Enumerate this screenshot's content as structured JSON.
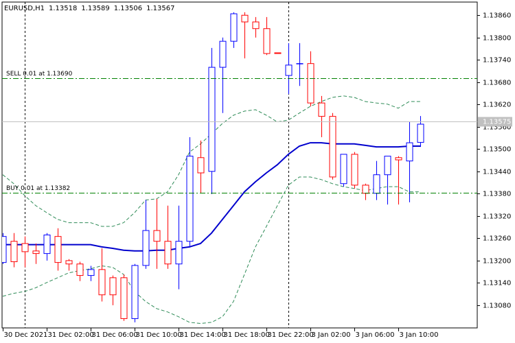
{
  "chart_data": {
    "type": "candlestick",
    "title": "EURUSD,H1",
    "categories": [
      "30 Dec 2021",
      null,
      null,
      null,
      "31 Dec 02:00",
      null,
      null,
      null,
      "31 Dec 06:00",
      null,
      null,
      null,
      "31 Dec 10:00",
      null,
      null,
      null,
      "31 Dec 14:00",
      null,
      null,
      null,
      "31 Dec 18:00",
      null,
      null,
      null,
      "31 Dec 22:00",
      null,
      null,
      null,
      "3 Jan 02:00",
      null,
      null,
      null,
      "3 Jan 06:00",
      null,
      null,
      null,
      "3 Jan 10:00",
      null,
      null
    ],
    "open": [
      1.13195,
      1.13252,
      1.13246,
      1.13226,
      1.13219,
      1.13265,
      1.132,
      1.13191,
      1.1316,
      1.13176,
      1.13154,
      1.13154,
      1.13044,
      1.13187,
      1.13281,
      1.13252,
      1.13191,
      1.13252,
      1.13477,
      1.1344,
      1.1372,
      1.1379,
      1.1386,
      1.13842,
      1.13824,
      1.13759,
      1.13698,
      1.1373,
      1.1373,
      1.13624,
      1.13588,
      1.13407,
      1.13486,
      1.13403,
      1.13381,
      1.13431,
      1.13477,
      1.13468,
      1.13518
    ],
    "high": [
      1.13274,
      1.13274,
      1.13265,
      1.13246,
      1.13274,
      1.13287,
      1.13204,
      1.13197,
      1.13186,
      1.13233,
      1.1316,
      1.13163,
      1.13191,
      1.13363,
      1.13366,
      1.13348,
      1.13348,
      1.13532,
      1.13523,
      1.13772,
      1.138,
      1.13868,
      1.13868,
      1.13855,
      1.13855,
      1.13759,
      1.13785,
      1.13785,
      1.13763,
      1.13643,
      1.13597,
      1.13486,
      1.13492,
      1.13407,
      1.13468,
      1.13481,
      1.13481,
      1.13573,
      1.13589
    ],
    "low": [
      1.13191,
      1.13182,
      1.13182,
      1.13191,
      1.132,
      1.13173,
      1.13173,
      1.13145,
      1.13145,
      1.1309,
      1.1308,
      1.13038,
      1.13034,
      1.13178,
      1.13178,
      1.13178,
      1.13123,
      1.13237,
      1.13381,
      1.13379,
      1.13597,
      1.13772,
      1.13744,
      1.138,
      1.13753,
      1.13757,
      1.13648,
      1.1367,
      1.13615,
      1.13532,
      1.13418,
      1.13399,
      1.13394,
      1.13363,
      1.13363,
      1.13351,
      1.13351,
      1.13357,
      1.13506
    ],
    "close": [
      1.13265,
      1.13197,
      1.13224,
      1.13219,
      1.13269,
      1.13195,
      1.13191,
      1.1316,
      1.13176,
      1.13108,
      1.13108,
      1.13044,
      1.13187,
      1.13281,
      1.13252,
      1.13191,
      1.13252,
      1.13481,
      1.13436,
      1.1372,
      1.1379,
      1.13864,
      1.13842,
      1.13824,
      1.13757,
      1.13757,
      1.13726,
      1.1373,
      1.13624,
      1.13588,
      1.13425,
      1.13486,
      1.13403,
      1.13381,
      1.13431,
      1.13481,
      1.13471,
      1.13517,
      1.13567
    ],
    "up_color": "#0000ff",
    "down_color": "#ff0000",
    "lines": [
      {
        "color": "#0000cd",
        "dashed": false,
        "values": [
          1.13243,
          1.13243,
          1.13243,
          1.13243,
          1.13243,
          1.13243,
          1.13243,
          1.13243,
          1.13243,
          1.13237,
          1.13233,
          1.13228,
          1.13226,
          1.13226,
          1.13228,
          1.13228,
          1.13233,
          1.13237,
          1.13246,
          1.13274,
          1.13311,
          1.13348,
          1.13385,
          1.13412,
          1.13436,
          1.13458,
          1.13486,
          1.13508,
          1.13517,
          1.13517,
          1.13514,
          1.13514,
          1.13514,
          1.1351,
          1.13506,
          1.13506,
          1.13506,
          1.13508,
          1.13508
        ]
      },
      {
        "color": "#2e8b57",
        "dashed": true,
        "values": [
          1.13431,
          1.13407,
          1.13375,
          1.13348,
          1.13329,
          1.13311,
          1.13302,
          1.13302,
          1.13302,
          1.13292,
          1.13292,
          1.13302,
          1.13329,
          1.13363,
          1.13366,
          1.13385,
          1.13431,
          1.13492,
          1.13514,
          1.13541,
          1.13569,
          1.13591,
          1.13602,
          1.13606,
          1.13591,
          1.13573,
          1.13578,
          1.13597,
          1.13615,
          1.13628,
          1.13639,
          1.13643,
          1.13639,
          1.13628,
          1.13624,
          1.13621,
          1.1361,
          1.13628,
          1.13628
        ]
      },
      {
        "color": "#2e8b57",
        "dashed": true,
        "values": [
          1.13104,
          1.13112,
          1.13117,
          1.13127,
          1.13141,
          1.13154,
          1.13167,
          1.13173,
          1.13178,
          1.13186,
          1.13182,
          1.13163,
          1.13117,
          1.1309,
          1.13071,
          1.13062,
          1.13049,
          1.13034,
          1.13031,
          1.13034,
          1.13049,
          1.1309,
          1.13163,
          1.13237,
          1.13292,
          1.13348,
          1.13403,
          1.13425,
          1.13425,
          1.13418,
          1.13407,
          1.13399,
          1.13394,
          1.13388,
          1.13394,
          1.13399,
          1.13399,
          1.13385,
          1.13385
        ]
      }
    ],
    "levels": [
      {
        "label": "SELL 0.01 at 1.13690",
        "value": 1.1369,
        "color": "#008000"
      },
      {
        "label": "BUY 0.01 at 1.13382",
        "value": 1.13382,
        "color": "#008000"
      }
    ],
    "price_line": 1.13575,
    "ylim": [
      1.13019,
      1.13901
    ],
    "yticks": [
      {
        "value": 1.1386,
        "label": "1.13860"
      },
      {
        "value": 1.138,
        "label": "1.13800"
      },
      {
        "value": 1.1374,
        "label": "1.13740"
      },
      {
        "value": 1.1368,
        "label": "1.13680"
      },
      {
        "value": 1.1362,
        "label": "1.13620"
      },
      {
        "value": 1.1356,
        "label": "1.13560"
      },
      {
        "value": 1.135,
        "label": "1.13500"
      },
      {
        "value": 1.1344,
        "label": "1.13440"
      },
      {
        "value": 1.1338,
        "label": "1.13380"
      },
      {
        "value": 1.1332,
        "label": "1.13320"
      },
      {
        "value": 1.1326,
        "label": "1.13260"
      },
      {
        "value": 1.132,
        "label": "1.13200"
      },
      {
        "value": 1.1314,
        "label": "1.13140"
      },
      {
        "value": 1.1308,
        "label": "1.13080"
      }
    ]
  }
}
